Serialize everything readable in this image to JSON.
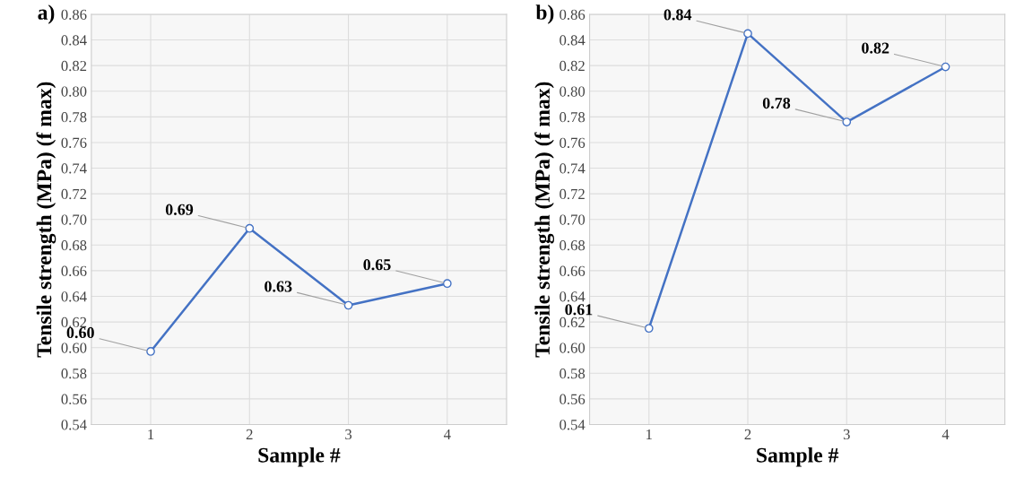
{
  "chart_data": [
    {
      "type": "line",
      "xlabel": "Sample #",
      "ylabel": "Tensile strength (MPa) (f max)",
      "annotations": [
        "a)"
      ],
      "categories": [
        "1",
        "2",
        "3",
        "4"
      ],
      "series": [
        {
          "color": "#4472c4",
          "values": [
            0.597,
            0.693,
            0.633,
            0.65
          ],
          "value_labels": [
            "0.60",
            "0.69",
            "0.63",
            "0.65"
          ]
        }
      ],
      "ylim": [
        0.54,
        0.86
      ],
      "yticks": [
        {
          "value": 0.54,
          "label": "0.54"
        },
        {
          "value": 0.56,
          "label": "0.56"
        },
        {
          "value": 0.58,
          "label": "0.58"
        },
        {
          "value": 0.6,
          "label": "0.60"
        },
        {
          "value": 0.62,
          "label": "0.62"
        },
        {
          "value": 0.64,
          "label": "0.64"
        },
        {
          "value": 0.66,
          "label": "0.66"
        },
        {
          "value": 0.68,
          "label": "0.68"
        },
        {
          "value": 0.7,
          "label": "0.70"
        },
        {
          "value": 0.72,
          "label": "0.72"
        },
        {
          "value": 0.74,
          "label": "0.74"
        },
        {
          "value": 0.76,
          "label": "0.76"
        },
        {
          "value": 0.78,
          "label": "0.78"
        },
        {
          "value": 0.8,
          "label": "0.80"
        },
        {
          "value": 0.82,
          "label": "0.82"
        },
        {
          "value": 0.84,
          "label": "0.84"
        },
        {
          "value": 0.86,
          "label": "0.86"
        }
      ],
      "grid": true,
      "marker": "circle",
      "line_style": "solid"
    },
    {
      "type": "line",
      "xlabel": "Sample #",
      "ylabel": "Tensile strength (MPa) (f max)",
      "annotations": [
        "b)"
      ],
      "categories": [
        "1",
        "2",
        "3",
        "4"
      ],
      "series": [
        {
          "color": "#4472c4",
          "values": [
            0.615,
            0.845,
            0.776,
            0.819
          ],
          "value_labels": [
            "0.61",
            "0.84",
            "0.78",
            "0.82"
          ]
        }
      ],
      "ylim": [
        0.54,
        0.86
      ],
      "yticks": [
        {
          "value": 0.54,
          "label": "0.54"
        },
        {
          "value": 0.56,
          "label": "0.56"
        },
        {
          "value": 0.58,
          "label": "0.58"
        },
        {
          "value": 0.6,
          "label": "0.60"
        },
        {
          "value": 0.62,
          "label": "0.62"
        },
        {
          "value": 0.64,
          "label": "0.64"
        },
        {
          "value": 0.66,
          "label": "0.66"
        },
        {
          "value": 0.68,
          "label": "0.68"
        },
        {
          "value": 0.7,
          "label": "0.70"
        },
        {
          "value": 0.72,
          "label": "0.72"
        },
        {
          "value": 0.74,
          "label": "0.74"
        },
        {
          "value": 0.76,
          "label": "0.76"
        },
        {
          "value": 0.78,
          "label": "0.78"
        },
        {
          "value": 0.8,
          "label": "0.80"
        },
        {
          "value": 0.82,
          "label": "0.82"
        },
        {
          "value": 0.84,
          "label": "0.84"
        },
        {
          "value": 0.86,
          "label": "0.86"
        }
      ],
      "grid": true,
      "marker": "circle",
      "line_style": "solid"
    }
  ]
}
